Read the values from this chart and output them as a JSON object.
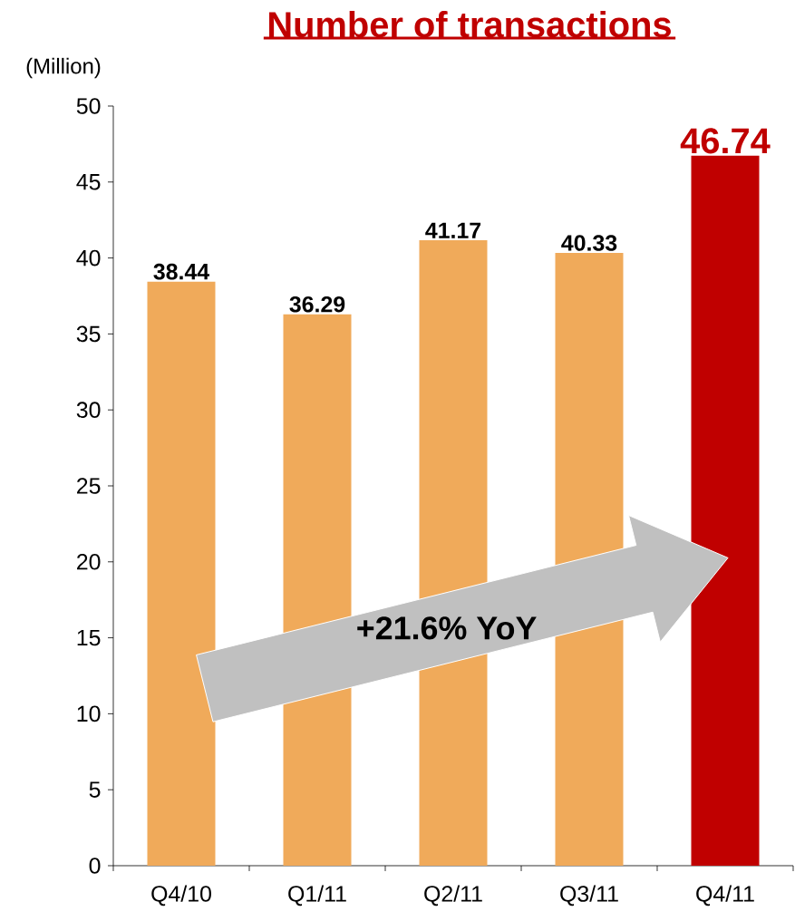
{
  "chart_data": {
    "type": "bar",
    "title": "Number of transactions",
    "ylabel": "(Million)",
    "categories": [
      "Q4/10",
      "Q1/11",
      "Q2/11",
      "Q3/11",
      "Q4/11"
    ],
    "values": [
      38.44,
      36.29,
      41.17,
      40.33,
      46.74
    ],
    "colors": [
      "#f0aa5a",
      "#f0aa5a",
      "#f0aa5a",
      "#f0aa5a",
      "#c00000"
    ],
    "ylim": [
      0,
      50
    ],
    "yticks": [
      0,
      5,
      10,
      15,
      20,
      25,
      30,
      35,
      40,
      45,
      50
    ],
    "data_labels": true,
    "grid": false,
    "annotations": [
      "+21.6% YoY"
    ]
  }
}
